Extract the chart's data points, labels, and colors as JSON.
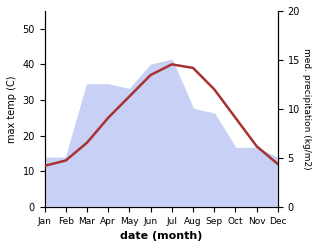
{
  "months": [
    "Jan",
    "Feb",
    "Mar",
    "Apr",
    "May",
    "Jun",
    "Jul",
    "Aug",
    "Sep",
    "Oct",
    "Nov",
    "Dec"
  ],
  "temperature": [
    11.5,
    13.0,
    18.0,
    25.0,
    31.0,
    37.0,
    40.0,
    39.0,
    33.0,
    25.0,
    17.0,
    12.0
  ],
  "precipitation": [
    5.0,
    5.0,
    12.5,
    12.5,
    12.0,
    14.5,
    15.0,
    10.0,
    9.5,
    6.0,
    6.0,
    5.0
  ],
  "temp_color": "#a83232",
  "precip_fill_color": "#c8d0f5",
  "temp_ylim": [
    0,
    55
  ],
  "precip_ylim": [
    0,
    20
  ],
  "left_yticks": [
    0,
    10,
    20,
    30,
    40,
    50
  ],
  "right_yticks": [
    0,
    5,
    10,
    15,
    20
  ],
  "xlabel": "date (month)",
  "ylabel_left": "max temp (C)",
  "ylabel_right": "med. precipitation (kg/m2)"
}
